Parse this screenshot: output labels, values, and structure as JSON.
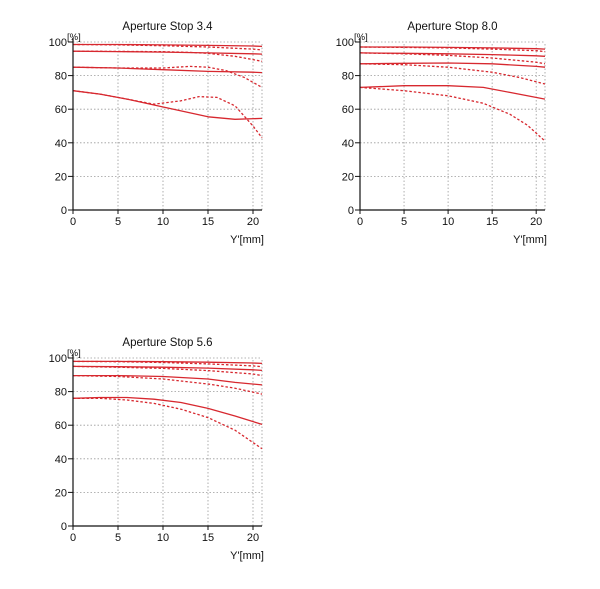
{
  "chart_data": [
    {
      "type": "line",
      "title": "Aperture Stop 3.4",
      "xlabel": "Y'[mm]",
      "ylabel": "[%]",
      "xlim": [
        0,
        21
      ],
      "ylim": [
        0,
        100
      ],
      "xticks": [
        0,
        5,
        10,
        15,
        20
      ],
      "yticks": [
        0,
        20,
        40,
        60,
        80,
        100
      ],
      "grid": true,
      "series": [
        {
          "style": "solid",
          "x": [
            0,
            5,
            10,
            15,
            20,
            21
          ],
          "y": [
            98.5,
            98.5,
            98.3,
            98.0,
            97.6,
            97.4
          ]
        },
        {
          "style": "dashed",
          "x": [
            0,
            5,
            10,
            15,
            20,
            21
          ],
          "y": [
            98.5,
            98.3,
            97.8,
            97.0,
            95.8,
            95.3
          ]
        },
        {
          "style": "solid",
          "x": [
            0,
            5,
            10,
            15,
            20,
            21
          ],
          "y": [
            94.5,
            94.3,
            94.0,
            93.5,
            93.0,
            92.8
          ]
        },
        {
          "style": "dashed",
          "x": [
            0,
            5,
            10,
            13,
            15,
            18,
            20,
            21
          ],
          "y": [
            94.5,
            94.4,
            94.2,
            93.8,
            93.2,
            91.5,
            89.5,
            88.5
          ]
        },
        {
          "style": "solid",
          "x": [
            0,
            5,
            10,
            15,
            20,
            21
          ],
          "y": [
            85.0,
            84.5,
            83.5,
            82.5,
            82.0,
            81.8
          ]
        },
        {
          "style": "dashed",
          "x": [
            0,
            5,
            10,
            13,
            15,
            17,
            19,
            21
          ],
          "y": [
            85.0,
            84.5,
            84.5,
            85.5,
            85.0,
            83.0,
            79.0,
            73.0
          ]
        },
        {
          "style": "solid",
          "x": [
            0,
            3,
            6,
            9,
            12,
            15,
            18,
            21
          ],
          "y": [
            71.0,
            69.0,
            66.0,
            62.5,
            59.0,
            55.5,
            54.0,
            54.5
          ]
        },
        {
          "style": "dashed",
          "x": [
            0,
            3,
            6,
            9,
            12,
            14,
            16,
            18,
            20,
            21
          ],
          "y": [
            71.0,
            69.0,
            66.0,
            63.0,
            65.0,
            67.5,
            67.0,
            62.0,
            50.0,
            43.0
          ]
        }
      ]
    },
    {
      "type": "line",
      "title": "Aperture Stop 8.0",
      "xlabel": "Y'[mm]",
      "ylabel": "[%]",
      "xlim": [
        0,
        21
      ],
      "ylim": [
        0,
        100
      ],
      "xticks": [
        0,
        5,
        10,
        15,
        20
      ],
      "yticks": [
        0,
        20,
        40,
        60,
        80,
        100
      ],
      "grid": true,
      "series": [
        {
          "style": "solid",
          "x": [
            0,
            5,
            10,
            15,
            20,
            21
          ],
          "y": [
            97.0,
            97.0,
            96.8,
            96.5,
            96.0,
            95.8
          ]
        },
        {
          "style": "dashed",
          "x": [
            0,
            5,
            10,
            15,
            20,
            21
          ],
          "y": [
            97.0,
            96.8,
            96.5,
            95.8,
            94.8,
            94.3
          ]
        },
        {
          "style": "solid",
          "x": [
            0,
            5,
            10,
            15,
            20,
            21
          ],
          "y": [
            93.5,
            93.3,
            93.0,
            92.5,
            91.8,
            91.5
          ]
        },
        {
          "style": "dashed",
          "x": [
            0,
            5,
            10,
            15,
            20,
            21
          ],
          "y": [
            93.5,
            93.0,
            92.0,
            90.5,
            88.0,
            87.0
          ]
        },
        {
          "style": "solid",
          "x": [
            0,
            5,
            10,
            15,
            20,
            21
          ],
          "y": [
            87.0,
            87.3,
            87.5,
            87.0,
            85.5,
            85.0
          ]
        },
        {
          "style": "dashed",
          "x": [
            0,
            5,
            10,
            15,
            18,
            21
          ],
          "y": [
            87.0,
            86.5,
            85.0,
            82.0,
            79.0,
            75.0
          ]
        },
        {
          "style": "solid",
          "x": [
            0,
            5,
            10,
            14,
            17,
            21
          ],
          "y": [
            73.0,
            74.0,
            74.0,
            73.0,
            70.0,
            66.0
          ]
        },
        {
          "style": "dashed",
          "x": [
            0,
            5,
            10,
            14,
            17,
            19,
            21
          ],
          "y": [
            73.0,
            71.0,
            68.0,
            63.5,
            57.0,
            50.5,
            41.0
          ]
        }
      ]
    },
    {
      "type": "line",
      "title": "Aperture Stop 5.6",
      "xlabel": "Y'[mm]",
      "ylabel": "[%]",
      "xlim": [
        0,
        21
      ],
      "ylim": [
        0,
        100
      ],
      "xticks": [
        0,
        5,
        10,
        15,
        20
      ],
      "yticks": [
        0,
        20,
        40,
        60,
        80,
        100
      ],
      "grid": true,
      "series": [
        {
          "style": "solid",
          "x": [
            0,
            5,
            10,
            15,
            20,
            21
          ],
          "y": [
            98.0,
            98.0,
            97.8,
            97.5,
            97.0,
            96.8
          ]
        },
        {
          "style": "dashed",
          "x": [
            0,
            5,
            10,
            15,
            20,
            21
          ],
          "y": [
            98.0,
            97.8,
            97.3,
            96.5,
            95.3,
            94.8
          ]
        },
        {
          "style": "solid",
          "x": [
            0,
            5,
            10,
            15,
            20,
            21
          ],
          "y": [
            95.0,
            94.8,
            94.5,
            94.0,
            93.0,
            92.6
          ]
        },
        {
          "style": "dashed",
          "x": [
            0,
            5,
            10,
            15,
            20,
            21
          ],
          "y": [
            95.0,
            94.5,
            93.8,
            92.5,
            90.5,
            89.5
          ]
        },
        {
          "style": "solid",
          "x": [
            0,
            5,
            10,
            15,
            18,
            21
          ],
          "y": [
            89.5,
            89.5,
            89.0,
            87.5,
            85.5,
            84.0
          ]
        },
        {
          "style": "dashed",
          "x": [
            0,
            5,
            10,
            15,
            18,
            21
          ],
          "y": [
            89.5,
            89.0,
            87.5,
            84.5,
            82.0,
            78.5
          ]
        },
        {
          "style": "solid",
          "x": [
            0,
            3,
            6,
            9,
            12,
            15,
            18,
            21
          ],
          "y": [
            76.0,
            76.5,
            76.5,
            75.5,
            73.5,
            70.0,
            65.5,
            60.5
          ]
        },
        {
          "style": "dashed",
          "x": [
            0,
            3,
            6,
            9,
            12,
            15,
            18,
            21
          ],
          "y": [
            76.0,
            76.0,
            75.0,
            73.0,
            69.5,
            64.5,
            57.0,
            46.0
          ]
        }
      ]
    }
  ],
  "style": {
    "line_color": "#d7282f",
    "grid_color": "#9a9a9a",
    "axis_color": "#111111"
  }
}
